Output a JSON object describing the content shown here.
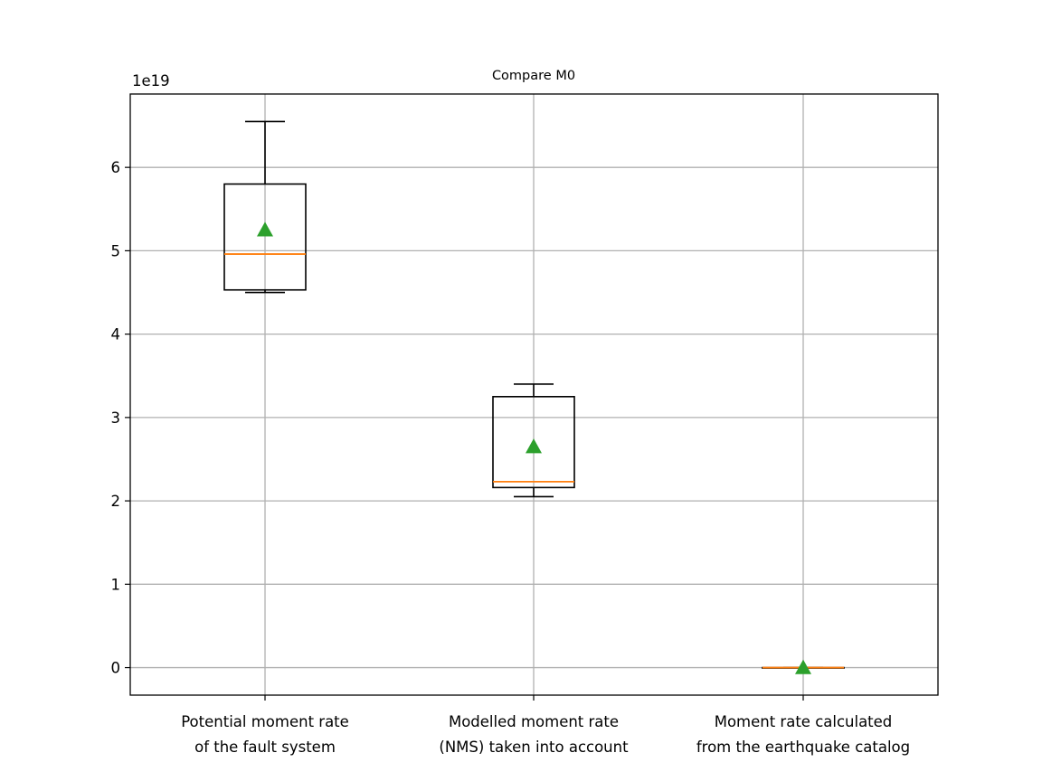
{
  "chart_data": {
    "type": "box",
    "title": "Compare M0",
    "offset_label": "1e19",
    "xlabel": "",
    "ylabel": "",
    "ylim": [
      -0.33,
      6.88
    ],
    "y_ticks": [
      {
        "value": 0,
        "label": "0"
      },
      {
        "value": 1,
        "label": "1"
      },
      {
        "value": 2,
        "label": "2"
      },
      {
        "value": 3,
        "label": "3"
      },
      {
        "value": 4,
        "label": "4"
      },
      {
        "value": 5,
        "label": "5"
      },
      {
        "value": 6,
        "label": "6"
      }
    ],
    "grid": true,
    "categories": [
      {
        "lines": [
          "Potential moment rate",
          "of the fault system"
        ]
      },
      {
        "lines": [
          "Modelled moment rate",
          "(NMS) taken into account"
        ]
      },
      {
        "lines": [
          "Moment rate calculated",
          "from the earthquake catalog"
        ]
      }
    ],
    "boxes": [
      {
        "whisker_low": 4.5,
        "q1": 4.53,
        "median": 4.96,
        "q3": 5.8,
        "whisker_high": 6.55,
        "mean": 5.25
      },
      {
        "whisker_low": 2.05,
        "q1": 2.16,
        "median": 2.23,
        "q3": 3.25,
        "whisker_high": 3.4,
        "mean": 2.65
      },
      {
        "whisker_low": 0.0,
        "q1": 0.0,
        "median": 0.0,
        "q3": 0.0,
        "whisker_high": 0.0,
        "mean": 0.0
      }
    ],
    "colors": {
      "box": "#000000",
      "median": "#ff7f0e",
      "mean_marker": "#2ca02c",
      "grid": "#b0b0b0"
    }
  }
}
